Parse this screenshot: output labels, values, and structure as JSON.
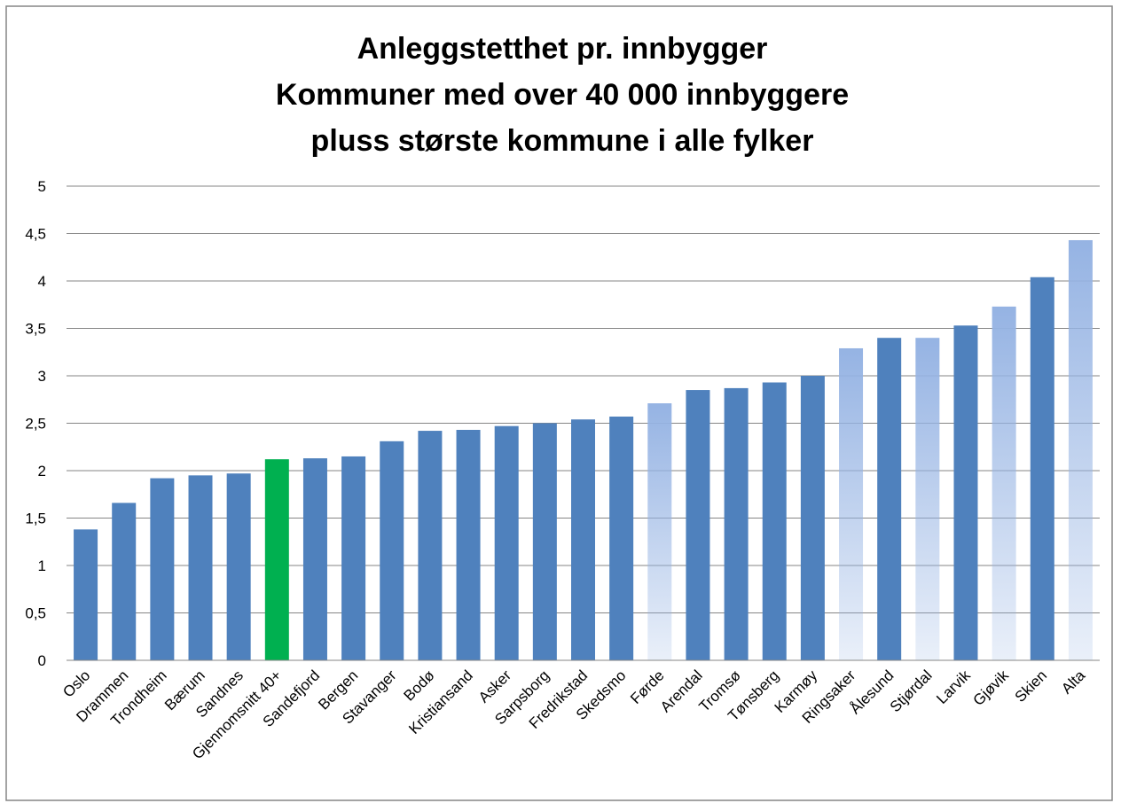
{
  "chart_data": {
    "type": "bar",
    "title": [
      "Anleggstetthet pr. innbygger",
      "Kommuner med over 40 000 innbyggere",
      "pluss største kommune i alle fylker"
    ],
    "categories": [
      "Oslo",
      "Drammen",
      "Trondheim",
      "Bærum",
      "Sandnes",
      "Gjennomsnitt 40+",
      "Sandefjord",
      "Bergen",
      "Stavanger",
      "Bodø",
      "Kristiansand",
      "Asker",
      "Sarpsborg",
      "Fredrikstad",
      "Skedsmo",
      "Førde",
      "Arendal",
      "Tromsø",
      "Tønsberg",
      "Karmøy",
      "Ringsaker",
      "Ålesund",
      "Stjørdal",
      "Larvik",
      "Gjøvik",
      "Skien",
      "Alta"
    ],
    "values": [
      1.38,
      1.66,
      1.92,
      1.95,
      1.97,
      2.12,
      2.13,
      2.15,
      2.31,
      2.42,
      2.43,
      2.47,
      2.5,
      2.54,
      2.57,
      2.71,
      2.85,
      2.87,
      2.93,
      3.0,
      3.29,
      3.4,
      3.4,
      3.53,
      3.73,
      4.04,
      4.43
    ],
    "colors": [
      "#4f81bd",
      "#4f81bd",
      "#4f81bd",
      "#4f81bd",
      "#4f81bd",
      "#00b050",
      "#4f81bd",
      "#4f81bd",
      "#4f81bd",
      "#4f81bd",
      "#4f81bd",
      "#4f81bd",
      "#4f81bd",
      "#4f81bd",
      "#4f81bd",
      "#95b3e3",
      "#4f81bd",
      "#4f81bd",
      "#4f81bd",
      "#4f81bd",
      "#95b3e3",
      "#4f81bd",
      "#95b3e3",
      "#4f81bd",
      "#95b3e3",
      "#4f81bd",
      "#95b3e3"
    ],
    "styles": [
      "solid",
      "solid",
      "solid",
      "solid",
      "solid",
      "solid",
      "solid",
      "solid",
      "solid",
      "solid",
      "solid",
      "solid",
      "solid",
      "solid",
      "solid",
      "gradient",
      "solid",
      "solid",
      "solid",
      "solid",
      "gradient",
      "solid",
      "gradient",
      "solid",
      "gradient",
      "solid",
      "gradient"
    ],
    "ylim": [
      0,
      5
    ],
    "yticks": [
      0,
      {
        "value": 0.5,
        "label": "0,5"
      },
      1,
      {
        "value": 1.5,
        "label": "1,5"
      },
      2,
      {
        "value": 2.5,
        "label": "2,5"
      },
      3,
      {
        "value": 3.5,
        "label": "3,5"
      },
      4,
      {
        "value": 4.5,
        "label": "4,5"
      },
      5
    ],
    "grid": true
  }
}
